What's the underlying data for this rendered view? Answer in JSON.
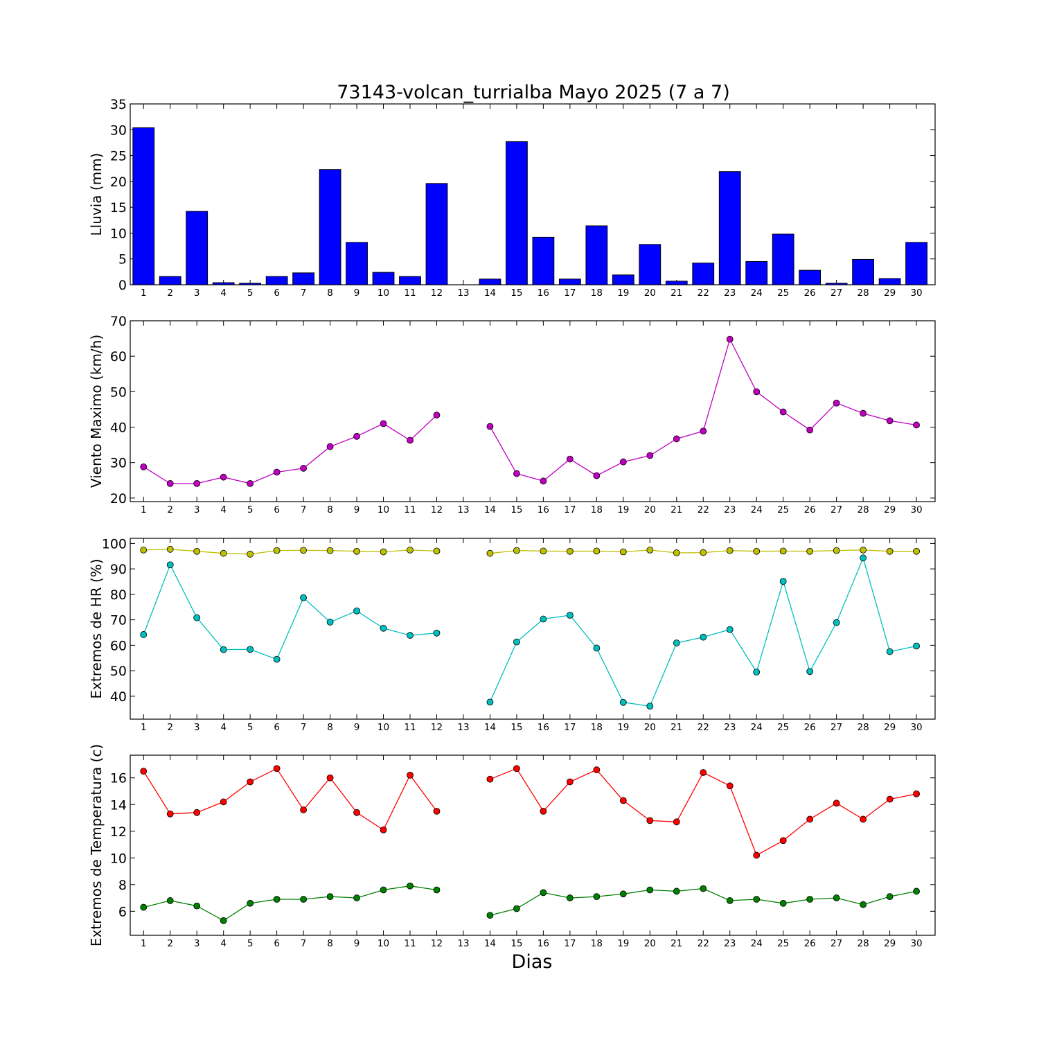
{
  "figure": {
    "title": "73143-volcan_turrialba Mayo 2025  (7 a 7)",
    "xlabel": "Dias",
    "days": [
      1,
      2,
      3,
      4,
      5,
      6,
      7,
      8,
      9,
      10,
      11,
      12,
      13,
      14,
      15,
      16,
      17,
      18,
      19,
      20,
      21,
      22,
      23,
      24,
      25,
      26,
      27,
      28,
      29,
      30
    ]
  },
  "chart_data": [
    {
      "type": "bar",
      "ylabel": "Lluvia (mm)",
      "ylim": [
        0,
        35
      ],
      "yticks": [
        0,
        5,
        10,
        15,
        20,
        25,
        30,
        35
      ],
      "grid": false,
      "categories": [
        1,
        2,
        3,
        4,
        5,
        6,
        7,
        8,
        9,
        10,
        11,
        12,
        13,
        14,
        15,
        16,
        17,
        18,
        19,
        20,
        21,
        22,
        23,
        24,
        25,
        26,
        27,
        28,
        29,
        30
      ],
      "series": [
        {
          "color": "#0000ff",
          "values": [
            30.4,
            1.6,
            14.2,
            0.4,
            0.3,
            1.6,
            2.3,
            22.3,
            8.2,
            2.4,
            1.6,
            19.6,
            0,
            1.1,
            27.7,
            9.2,
            1.1,
            11.4,
            1.9,
            7.8,
            0.7,
            4.2,
            21.9,
            4.5,
            9.8,
            2.8,
            0.3,
            4.9,
            1.2,
            8.2
          ]
        }
      ]
    },
    {
      "type": "line",
      "ylabel": "Viento Maximo (km/h)",
      "ylim": [
        19,
        70
      ],
      "yticks": [
        20,
        30,
        40,
        50,
        60,
        70
      ],
      "grid": false,
      "x": [
        1,
        2,
        3,
        4,
        5,
        6,
        7,
        8,
        9,
        10,
        11,
        12,
        13,
        14,
        15,
        16,
        17,
        18,
        19,
        20,
        21,
        22,
        23,
        24,
        25,
        26,
        27,
        28,
        29,
        30
      ],
      "series": [
        {
          "color": "#bf00bf",
          "values": [
            28.8,
            24.1,
            24.1,
            25.9,
            24.1,
            27.3,
            28.4,
            34.5,
            37.4,
            41.0,
            36.3,
            43.4,
            null,
            40.2,
            26.9,
            24.8,
            31.0,
            26.3,
            30.2,
            32.0,
            36.7,
            38.9,
            64.8,
            50.0,
            44.3,
            39.2,
            46.8,
            43.9,
            41.8,
            40.6
          ]
        }
      ]
    },
    {
      "type": "line",
      "ylabel": "Extremos de HR (%)",
      "ylim": [
        31,
        102
      ],
      "yticks": [
        40,
        50,
        60,
        70,
        80,
        90,
        100
      ],
      "grid": false,
      "x": [
        1,
        2,
        3,
        4,
        5,
        6,
        7,
        8,
        9,
        10,
        11,
        12,
        13,
        14,
        15,
        16,
        17,
        18,
        19,
        20,
        21,
        22,
        23,
        24,
        25,
        26,
        27,
        28,
        29,
        30
      ],
      "series": [
        {
          "color": "#bfbf00",
          "values": [
            97.4,
            97.7,
            96.9,
            96.1,
            95.8,
            97.2,
            97.3,
            97.2,
            96.9,
            96.7,
            97.4,
            97.0,
            null,
            96.1,
            97.2,
            97.0,
            96.9,
            97.0,
            96.7,
            97.4,
            96.3,
            96.4,
            97.2,
            96.9,
            97.0,
            96.9,
            97.2,
            97.4,
            96.9,
            96.9
          ]
        },
        {
          "color": "#00bfbf",
          "values": [
            64.2,
            91.6,
            70.8,
            58.3,
            58.4,
            54.5,
            78.7,
            69.1,
            73.5,
            66.7,
            63.9,
            64.8,
            null,
            37.7,
            61.3,
            70.3,
            71.8,
            58.9,
            37.6,
            36.1,
            60.9,
            63.2,
            66.2,
            49.5,
            85.1,
            49.7,
            68.9,
            94.3,
            57.5,
            59.7
          ]
        }
      ]
    },
    {
      "type": "line",
      "ylabel": "Extremos de Temperatura (c)",
      "ylim": [
        4.2,
        17.7
      ],
      "yticks": [
        6,
        8,
        10,
        12,
        14,
        16
      ],
      "grid": false,
      "x": [
        1,
        2,
        3,
        4,
        5,
        6,
        7,
        8,
        9,
        10,
        11,
        12,
        13,
        14,
        15,
        16,
        17,
        18,
        19,
        20,
        21,
        22,
        23,
        24,
        25,
        26,
        27,
        28,
        29,
        30
      ],
      "series": [
        {
          "color": "#ff0000",
          "values": [
            16.5,
            13.3,
            13.4,
            14.2,
            15.7,
            16.7,
            13.6,
            16.0,
            13.4,
            12.1,
            16.2,
            13.5,
            null,
            15.9,
            16.7,
            13.5,
            15.7,
            16.6,
            14.3,
            12.8,
            12.7,
            16.4,
            15.4,
            10.2,
            11.3,
            12.9,
            14.1,
            12.9,
            14.4,
            14.8
          ]
        },
        {
          "color": "#007f00",
          "values": [
            6.3,
            6.8,
            6.4,
            5.3,
            6.6,
            6.9,
            6.9,
            7.1,
            7.0,
            7.6,
            7.9,
            7.6,
            null,
            5.7,
            6.2,
            7.4,
            7.0,
            7.1,
            7.3,
            7.6,
            7.5,
            7.7,
            6.8,
            6.9,
            6.6,
            6.9,
            7.0,
            6.5,
            7.1,
            7.5
          ]
        }
      ]
    }
  ]
}
